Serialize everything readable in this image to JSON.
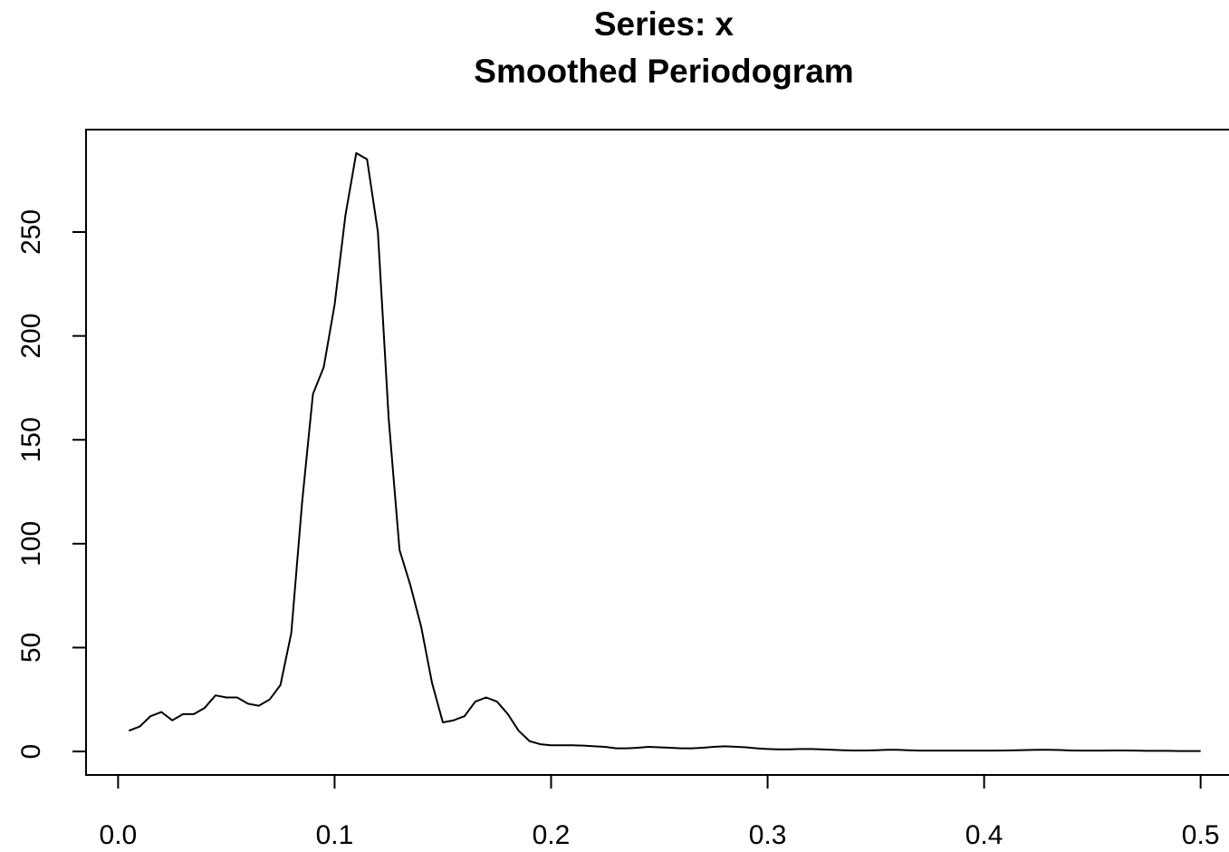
{
  "chart_data": {
    "type": "line",
    "title": "Series: x",
    "subtitle": "Smoothed Periodogram",
    "x": [
      0.005,
      0.01,
      0.015,
      0.02,
      0.025,
      0.03,
      0.035,
      0.04,
      0.045,
      0.05,
      0.055,
      0.06,
      0.065,
      0.07,
      0.075,
      0.08,
      0.085,
      0.09,
      0.095,
      0.1,
      0.105,
      0.11,
      0.115,
      0.12,
      0.125,
      0.13,
      0.135,
      0.14,
      0.145,
      0.15,
      0.155,
      0.16,
      0.165,
      0.17,
      0.175,
      0.18,
      0.185,
      0.19,
      0.195,
      0.2,
      0.205,
      0.21,
      0.215,
      0.22,
      0.225,
      0.23,
      0.235,
      0.24,
      0.245,
      0.25,
      0.255,
      0.26,
      0.265,
      0.27,
      0.275,
      0.28,
      0.285,
      0.29,
      0.295,
      0.3,
      0.305,
      0.31,
      0.315,
      0.32,
      0.325,
      0.33,
      0.335,
      0.34,
      0.345,
      0.35,
      0.355,
      0.36,
      0.365,
      0.37,
      0.375,
      0.38,
      0.385,
      0.39,
      0.395,
      0.4,
      0.405,
      0.41,
      0.415,
      0.42,
      0.425,
      0.43,
      0.435,
      0.44,
      0.445,
      0.45,
      0.455,
      0.46,
      0.465,
      0.47,
      0.475,
      0.48,
      0.485,
      0.49,
      0.495,
      0.5
    ],
    "values": [
      10,
      12,
      17,
      19,
      15,
      18,
      18,
      21,
      27,
      26,
      26,
      23,
      22,
      25,
      32,
      57,
      120,
      172,
      185,
      215,
      258,
      288,
      285,
      250,
      160,
      97,
      80,
      60,
      33,
      14,
      15,
      17,
      24,
      26,
      24,
      18,
      10,
      5,
      3.5,
      3,
      3,
      3,
      2.8,
      2.5,
      2.2,
      1.5,
      1.5,
      1.8,
      2.2,
      2,
      1.8,
      1.5,
      1.5,
      1.8,
      2.2,
      2.5,
      2.3,
      2,
      1.5,
      1.2,
      1,
      1,
      1.2,
      1.2,
      1,
      0.8,
      0.6,
      0.5,
      0.5,
      0.6,
      0.8,
      0.8,
      0.6,
      0.4,
      0.4,
      0.4,
      0.4,
      0.4,
      0.4,
      0.4,
      0.4,
      0.5,
      0.6,
      0.7,
      0.8,
      0.8,
      0.7,
      0.5,
      0.4,
      0.4,
      0.4,
      0.5,
      0.5,
      0.4,
      0.3,
      0.3,
      0.3,
      0.2,
      0.2,
      0.2
    ],
    "color": "#000000",
    "xlim": [
      -0.0148,
      0.5198
    ],
    "ylim": [
      -11.3,
      299.3
    ],
    "xticks": [
      {
        "value": 0,
        "label": "0.0"
      },
      0.1,
      0.2,
      0.3,
      0.4,
      0.5
    ],
    "yticks": [
      0,
      50,
      100,
      150,
      200,
      250
    ]
  }
}
